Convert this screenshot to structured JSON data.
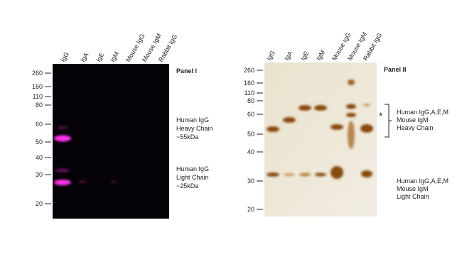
{
  "panels": [
    {
      "title": "Panel I",
      "lanes": [
        "IgG",
        "IgA",
        "IgE",
        "IgM",
        "Mouse IgG",
        "Mouse IgM",
        "Rabbit IgG"
      ],
      "markers": [
        "260",
        "160",
        "110",
        "80",
        "60",
        "50",
        "40",
        "30",
        "20"
      ],
      "annotations": [
        [
          "Human IgG",
          "Heavy Chain",
          "~55kDa"
        ],
        [
          "Human IgG",
          "Light Chain",
          "~25kDa"
        ]
      ]
    },
    {
      "title": "Panel II",
      "lanes": [
        "IgG",
        "IgA",
        "IgE",
        "IgM",
        "Mouse IgG",
        "Mouse IgM",
        "Rabbit IgG"
      ],
      "markers": [
        "260",
        "160",
        "110",
        "80",
        "60",
        "50",
        "40",
        "30",
        "20"
      ],
      "star": "*",
      "annotations": [
        [
          "Human IgG,A,E,M",
          "Mouse IgM",
          "Heavy Chain"
        ],
        [
          "Human IgG,A,E,M",
          "Mouse IgM",
          "Light Chain"
        ]
      ]
    }
  ]
}
